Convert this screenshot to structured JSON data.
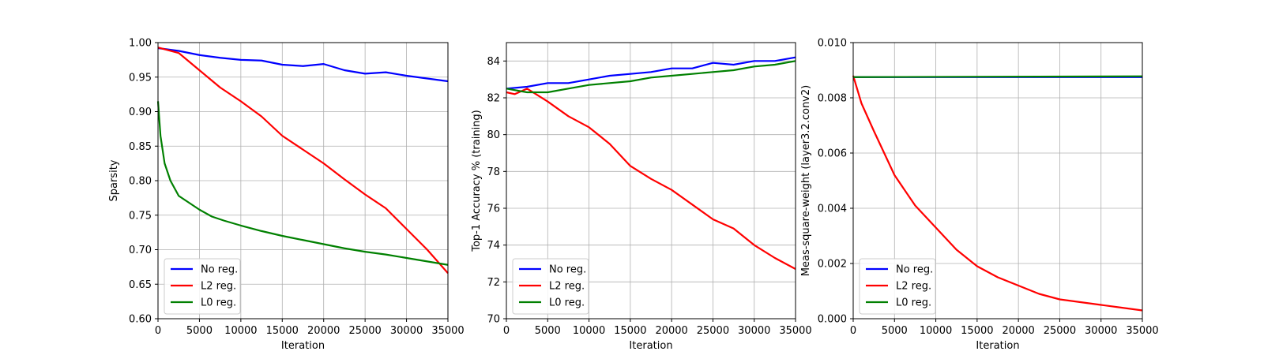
{
  "colors": {
    "no_reg": "#0000ff",
    "l2_reg": "#ff0000",
    "l0_reg": "#008000",
    "grid": "#b0b0b0"
  },
  "chart_data": [
    {
      "type": "line",
      "xlabel": "Iteration",
      "ylabel": "Sparsity",
      "xlim": [
        0,
        35000
      ],
      "ylim": [
        0.6,
        1.0
      ],
      "xticks": [
        0,
        5000,
        10000,
        15000,
        20000,
        25000,
        30000,
        35000
      ],
      "yticks": [
        0.6,
        0.65,
        0.7,
        0.75,
        0.8,
        0.85,
        0.9,
        0.95,
        1.0
      ],
      "ytick_labels": [
        "0.60",
        "0.65",
        "0.70",
        "0.75",
        "0.80",
        "0.85",
        "0.90",
        "0.95",
        "1.00"
      ],
      "grid": true,
      "legend_position": "lower-left",
      "series": [
        {
          "name": "No reg.",
          "color": "#0000ff",
          "x": [
            0,
            2500,
            5000,
            7500,
            10000,
            12500,
            15000,
            17500,
            20000,
            22500,
            25000,
            27500,
            30000,
            32500,
            35000
          ],
          "y": [
            0.992,
            0.988,
            0.982,
            0.978,
            0.975,
            0.974,
            0.968,
            0.966,
            0.969,
            0.96,
            0.955,
            0.957,
            0.952,
            0.948,
            0.944
          ]
        },
        {
          "name": "L2 reg.",
          "color": "#ff0000",
          "x": [
            0,
            2500,
            5000,
            7500,
            10000,
            12500,
            15000,
            17500,
            20000,
            22500,
            25000,
            27500,
            30000,
            32500,
            35000
          ],
          "y": [
            0.993,
            0.985,
            0.96,
            0.935,
            0.915,
            0.893,
            0.865,
            0.845,
            0.825,
            0.802,
            0.78,
            0.76,
            0.73,
            0.7,
            0.666
          ]
        },
        {
          "name": "L0 reg.",
          "color": "#008000",
          "x": [
            0,
            300,
            800,
            1500,
            2500,
            3500,
            5000,
            6500,
            8000,
            10000,
            12500,
            15000,
            17500,
            20000,
            22500,
            25000,
            27500,
            30000,
            32500,
            35000
          ],
          "y": [
            0.915,
            0.865,
            0.825,
            0.8,
            0.778,
            0.77,
            0.758,
            0.748,
            0.742,
            0.735,
            0.727,
            0.72,
            0.714,
            0.708,
            0.702,
            0.697,
            0.693,
            0.688,
            0.683,
            0.678
          ]
        }
      ]
    },
    {
      "type": "line",
      "xlabel": "Iteration",
      "ylabel": "Top-1 Accuracy % (training)",
      "xlim": [
        0,
        35000
      ],
      "ylim": [
        70,
        85
      ],
      "xticks": [
        0,
        5000,
        10000,
        15000,
        20000,
        25000,
        30000,
        35000
      ],
      "yticks": [
        70,
        72,
        74,
        76,
        78,
        80,
        82,
        84
      ],
      "ytick_labels": [
        "70",
        "72",
        "74",
        "76",
        "78",
        "80",
        "82",
        "84"
      ],
      "grid": true,
      "legend_position": "lower-left",
      "series": [
        {
          "name": "No reg.",
          "color": "#0000ff",
          "x": [
            0,
            2500,
            5000,
            7500,
            10000,
            12500,
            15000,
            17500,
            20000,
            22500,
            25000,
            27500,
            30000,
            32500,
            35000
          ],
          "y": [
            82.5,
            82.6,
            82.8,
            82.8,
            83.0,
            83.2,
            83.3,
            83.4,
            83.6,
            83.6,
            83.9,
            83.8,
            84.0,
            84.0,
            84.2
          ]
        },
        {
          "name": "L2 reg.",
          "color": "#ff0000",
          "x": [
            0,
            1000,
            2500,
            5000,
            7500,
            10000,
            12500,
            15000,
            17500,
            20000,
            22500,
            25000,
            27500,
            30000,
            32500,
            35000
          ],
          "y": [
            82.3,
            82.2,
            82.5,
            81.8,
            81.0,
            80.4,
            79.5,
            78.3,
            77.6,
            77.0,
            76.2,
            75.4,
            74.9,
            74.0,
            73.3,
            72.7
          ]
        },
        {
          "name": "L0 reg.",
          "color": "#008000",
          "x": [
            0,
            2500,
            5000,
            7500,
            10000,
            12500,
            15000,
            17500,
            20000,
            22500,
            25000,
            27500,
            30000,
            32500,
            35000
          ],
          "y": [
            82.5,
            82.3,
            82.3,
            82.5,
            82.7,
            82.8,
            82.9,
            83.1,
            83.2,
            83.3,
            83.4,
            83.5,
            83.7,
            83.8,
            84.0
          ]
        }
      ]
    },
    {
      "type": "line",
      "xlabel": "Iteration",
      "ylabel": "Meas-square-weight (layer3.2.conv2)",
      "xlim": [
        0,
        35000
      ],
      "ylim": [
        0.0,
        0.01
      ],
      "xticks": [
        0,
        5000,
        10000,
        15000,
        20000,
        25000,
        30000,
        35000
      ],
      "yticks": [
        0.0,
        0.002,
        0.004,
        0.006,
        0.008,
        0.01
      ],
      "ytick_labels": [
        "0.000",
        "0.002",
        "0.004",
        "0.006",
        "0.008",
        "0.010"
      ],
      "grid": true,
      "legend_position": "lower-left",
      "series": [
        {
          "name": "No reg.",
          "color": "#0000ff",
          "x": [
            0,
            35000
          ],
          "y": [
            0.00875,
            0.00875
          ]
        },
        {
          "name": "L2 reg.",
          "color": "#ff0000",
          "x": [
            0,
            1000,
            2500,
            5000,
            7500,
            10000,
            12500,
            15000,
            17500,
            20000,
            22500,
            25000,
            27500,
            30000,
            32500,
            35000
          ],
          "y": [
            0.0088,
            0.0078,
            0.0068,
            0.0052,
            0.0041,
            0.0033,
            0.0025,
            0.0019,
            0.0015,
            0.0012,
            0.0009,
            0.0007,
            0.0006,
            0.0005,
            0.0004,
            0.0003
          ]
        },
        {
          "name": "L0 reg.",
          "color": "#008000",
          "x": [
            0,
            35000
          ],
          "y": [
            0.00875,
            0.00878
          ]
        }
      ]
    }
  ]
}
